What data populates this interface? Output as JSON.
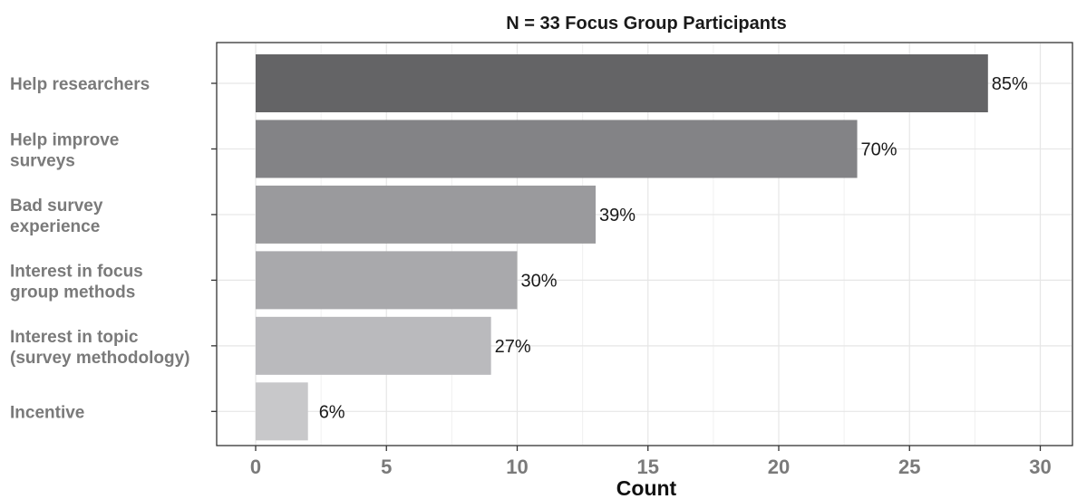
{
  "chart_data": {
    "type": "bar",
    "orientation": "horizontal",
    "title": "N = 33 Focus Group Participants",
    "xlabel": "Count",
    "ylabel": "",
    "xlim": [
      0,
      31.5
    ],
    "x_ticks": [
      0,
      5,
      10,
      15,
      20,
      25,
      30
    ],
    "grid": true,
    "legend": "none",
    "categories": [
      [
        "Help researchers"
      ],
      [
        "Help improve",
        "surveys"
      ],
      [
        "Bad survey",
        "experience"
      ],
      [
        "Interest in focus",
        "group methods"
      ],
      [
        "Interest in topic",
        "(survey methodology)"
      ],
      [
        "Incentive"
      ]
    ],
    "values": [
      28,
      23,
      13,
      10,
      9,
      2
    ],
    "data_labels": [
      "85%",
      "70%",
      "39%",
      "30%",
      "27%",
      "6%"
    ],
    "colors": [
      "#646466",
      "#838386",
      "#9a9a9d",
      "#a9a9ac",
      "#bababd",
      "#c8c8ca"
    ]
  }
}
